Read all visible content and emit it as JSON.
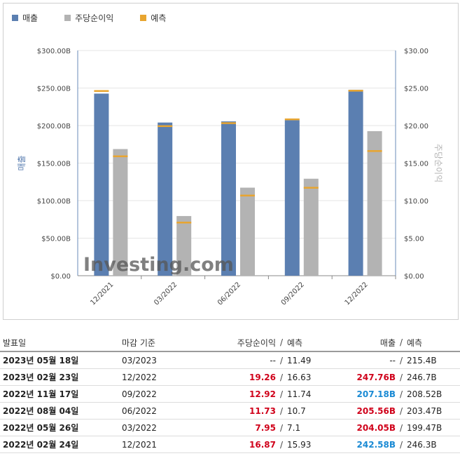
{
  "legend": [
    {
      "label": "매출",
      "color": "#5b7fb1"
    },
    {
      "label": "주당순이익",
      "color": "#b3b3b3"
    },
    {
      "label": "예측",
      "color": "#e8a530"
    }
  ],
  "chart_data": {
    "type": "bar",
    "categories": [
      "12/2021",
      "03/2022",
      "06/2022",
      "09/2022",
      "12/2022"
    ],
    "series": [
      {
        "name": "매출",
        "axis": "left",
        "unit": "B",
        "values": [
          242.58,
          204.05,
          205.56,
          207.18,
          247.76
        ],
        "forecast": [
          246.3,
          199.47,
          203.47,
          208.52,
          246.7
        ],
        "color": "#5b7fb1"
      },
      {
        "name": "주당순이익",
        "axis": "right",
        "values": [
          16.87,
          7.95,
          11.73,
          12.92,
          19.26
        ],
        "forecast": [
          15.93,
          7.1,
          10.7,
          11.74,
          16.63
        ],
        "color": "#b3b3b3"
      }
    ],
    "forecast_color": "#e8a530",
    "ylabel": "매출",
    "y2label": "주당순이익",
    "ylim": [
      0,
      300
    ],
    "y2lim": [
      0,
      30
    ],
    "yticks": [
      "$0.00",
      "$50.00B",
      "$100.00B",
      "$150.00B",
      "$200.00B",
      "$250.00B",
      "$300.00B"
    ],
    "y2ticks": [
      "$0.00",
      "$5.00",
      "$10.00",
      "$15.00",
      "$20.00",
      "$25.00",
      "$30.00"
    ],
    "grid": true
  },
  "watermark": "Investing.com",
  "table": {
    "headers": {
      "date": "발표일",
      "period": "마감 기준",
      "eps": "주당순이익",
      "eps_sep": "/",
      "eps_fc": "예측",
      "rev": "매출",
      "rev_sep": "/",
      "rev_fc": "예측"
    },
    "rows": [
      {
        "date": "2023년 05월 18일",
        "period": "03/2023",
        "eps": "--",
        "eps_fc": "11.49",
        "rev": "--",
        "rev_fc": "215.4B",
        "eps_cls": "",
        "rev_cls": ""
      },
      {
        "date": "2023년 02월 23일",
        "period": "12/2022",
        "eps": "19.26",
        "eps_fc": "16.63",
        "rev": "247.76B",
        "rev_fc": "246.7B",
        "eps_cls": "red",
        "rev_cls": "red"
      },
      {
        "date": "2022년 11월 17일",
        "period": "09/2022",
        "eps": "12.92",
        "eps_fc": "11.74",
        "rev": "207.18B",
        "rev_fc": "208.52B",
        "eps_cls": "red",
        "rev_cls": "blue"
      },
      {
        "date": "2022년 08월 04일",
        "period": "06/2022",
        "eps": "11.73",
        "eps_fc": "10.7",
        "rev": "205.56B",
        "rev_fc": "203.47B",
        "eps_cls": "red",
        "rev_cls": "red"
      },
      {
        "date": "2022년 05월 26일",
        "period": "03/2022",
        "eps": "7.95",
        "eps_fc": "7.1",
        "rev": "204.05B",
        "rev_fc": "199.47B",
        "eps_cls": "red",
        "rev_cls": "red"
      },
      {
        "date": "2022년 02월 24일",
        "period": "12/2021",
        "eps": "16.87",
        "eps_fc": "15.93",
        "rev": "242.58B",
        "rev_fc": "246.3B",
        "eps_cls": "red",
        "rev_cls": "blue"
      }
    ]
  }
}
